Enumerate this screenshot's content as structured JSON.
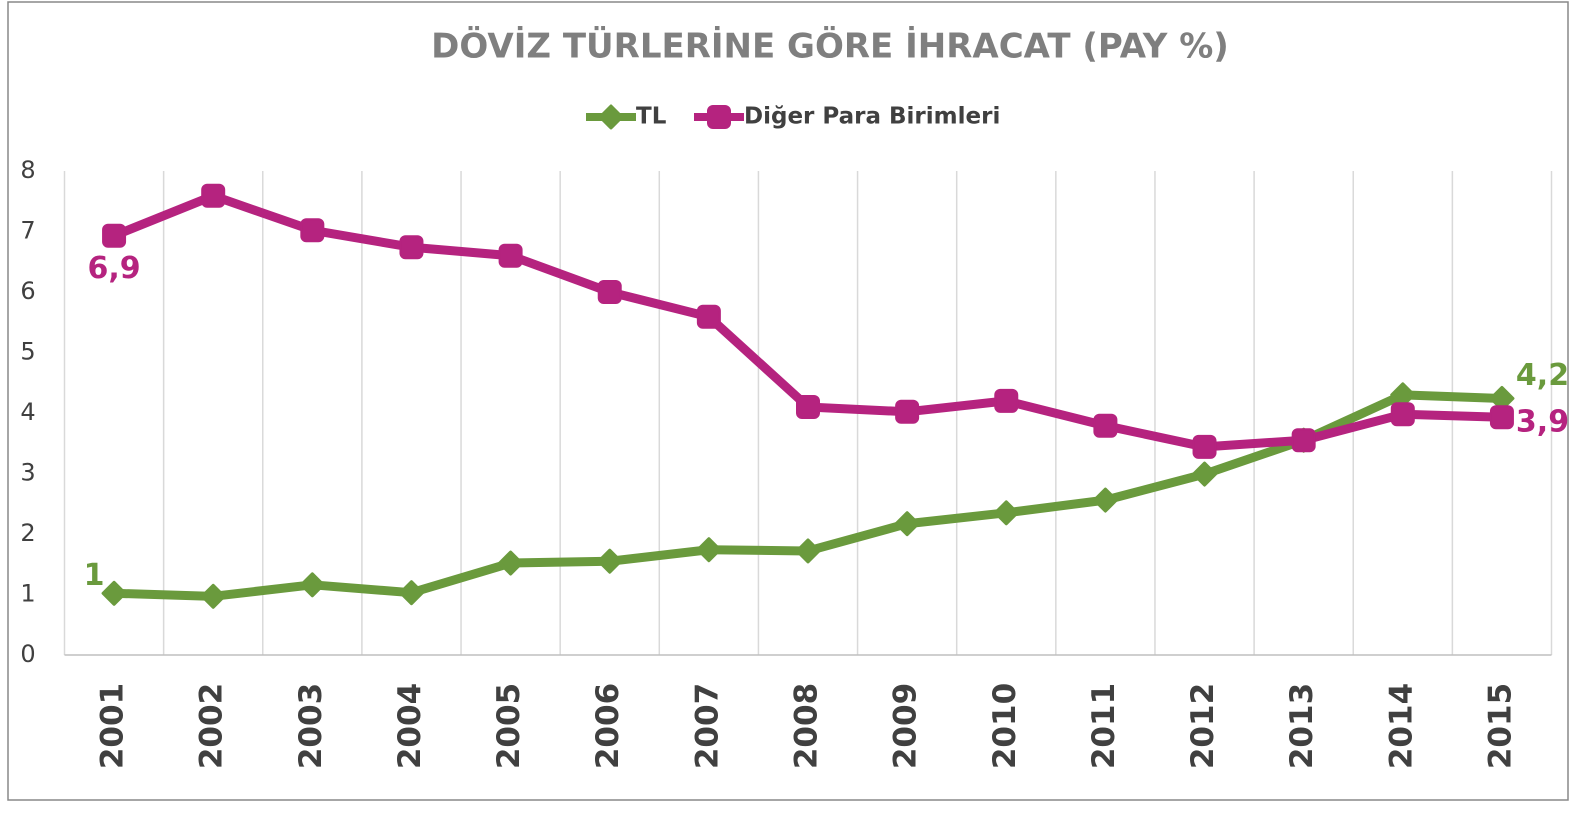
{
  "chart_data": {
    "type": "line",
    "title": "DÖVİZ TÜRLERİNE GÖRE İHRACAT (PAY %)",
    "categories": [
      "2001",
      "2002",
      "2003",
      "2004",
      "2005",
      "2006",
      "2007",
      "2008",
      "2009",
      "2010",
      "2011",
      "2012",
      "2013",
      "2014",
      "2015"
    ],
    "series": [
      {
        "name": "TL",
        "color": "#6a9a3d",
        "marker": "diamond",
        "values": [
          1.02,
          0.97,
          1.16,
          1.03,
          1.52,
          1.55,
          1.74,
          1.72,
          2.17,
          2.35,
          2.56,
          2.99,
          3.55,
          4.3,
          4.24
        ],
        "value_labels": [
          "1",
          null,
          null,
          null,
          null,
          null,
          null,
          null,
          null,
          null,
          null,
          null,
          null,
          null,
          "4,2"
        ]
      },
      {
        "name": "Diğer Para Birimleri",
        "color": "#b5237f",
        "marker": "square",
        "values": [
          6.93,
          7.59,
          7.02,
          6.74,
          6.6,
          6.0,
          5.59,
          4.1,
          4.02,
          4.2,
          3.79,
          3.44,
          3.55,
          3.98,
          3.93
        ],
        "value_labels": [
          "6,9",
          null,
          null,
          null,
          null,
          null,
          null,
          null,
          null,
          null,
          null,
          null,
          null,
          null,
          "3,9"
        ]
      }
    ],
    "ylim": [
      0,
      8
    ],
    "yticks": [
      0,
      1,
      2,
      3,
      4,
      5,
      6,
      7,
      8
    ],
    "grid": true,
    "legend": "top"
  }
}
